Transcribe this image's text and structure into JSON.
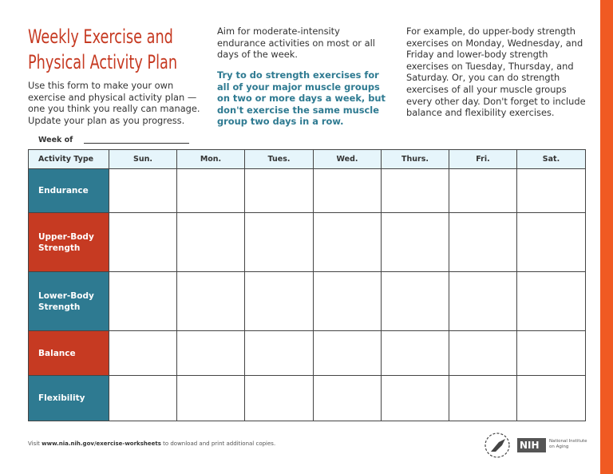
{
  "title": "Weekly Exercise and Physical Activity Plan",
  "intro": "Use this form to make your own exercise and physical activity plan — one you think you really can manage. Update your plan as you progress.",
  "col2_text": "Aim for moderate-intensity endurance activities on most or all days of the week.",
  "col2_bold": "Try to do strength exercises for all of your major muscle groups on two or more days a week, but don't exercise the same muscle group two days in a row.",
  "col3_text": "For example, do upper-body strength exercises on Monday, Wednesday, and Friday and lower-body strength exercises on Tuesday, Thursday, and Saturday. Or, you can do strength exercises of all your muscle groups every other day. Don't forget to include balance and flexibility exercises.",
  "week_of_label": "Week of",
  "table": {
    "headers": [
      "Activity Type",
      "Sun.",
      "Mon.",
      "Tues.",
      "Wed.",
      "Thurs.",
      "Fri.",
      "Sat."
    ],
    "rows": [
      {
        "label": "Endurance",
        "color": "#2e7a91"
      },
      {
        "label": "Upper-Body Strength",
        "color": "#c63a22"
      },
      {
        "label": "Lower-Body Strength",
        "color": "#2e7a91"
      },
      {
        "label": "Balance",
        "color": "#c63a22"
      },
      {
        "label": "Flexibility",
        "color": "#2e7a91"
      }
    ]
  },
  "footer": {
    "pre": "Visit ",
    "link": "www.nia.nih.gov/exercise-worksheets",
    "post": " to download and print additional copies."
  },
  "logos": {
    "nih": "NIH",
    "institute": "National Institute on Aging",
    "hhs": "hhs-eagle-logo"
  },
  "colors": {
    "accent_orange": "#f05a22",
    "teal": "#2e7a91",
    "red": "#c63a22"
  }
}
